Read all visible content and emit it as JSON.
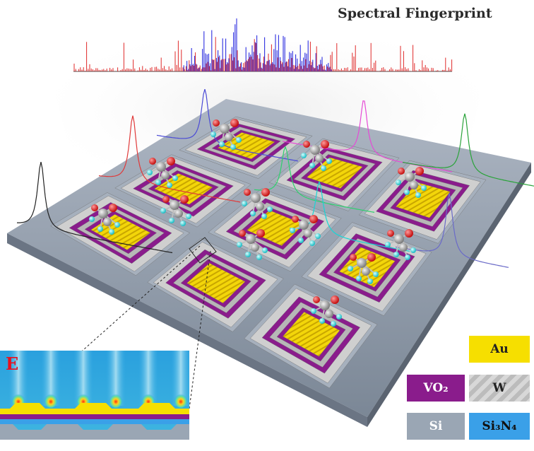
{
  "title": "Spectral Fingerprint",
  "legend": {
    "au": "Au",
    "vo2": "VO₂",
    "w": "W",
    "si": "Si",
    "si3n4": "Si₃N₄"
  },
  "inset": {
    "label": "E"
  },
  "colors": {
    "au": "#f6df00",
    "vo2": "#8a1c8c",
    "w": "#c8c8c8",
    "si": "#9aa6b4",
    "si3n4": "#3aa0e8",
    "spectrum_blue": "#2d2fe0",
    "spectrum_red": "#e02a2a",
    "oxygen": "#e01b1b",
    "hydrogen": "#3ee6e6",
    "carbon": "#a9a9a9"
  }
}
